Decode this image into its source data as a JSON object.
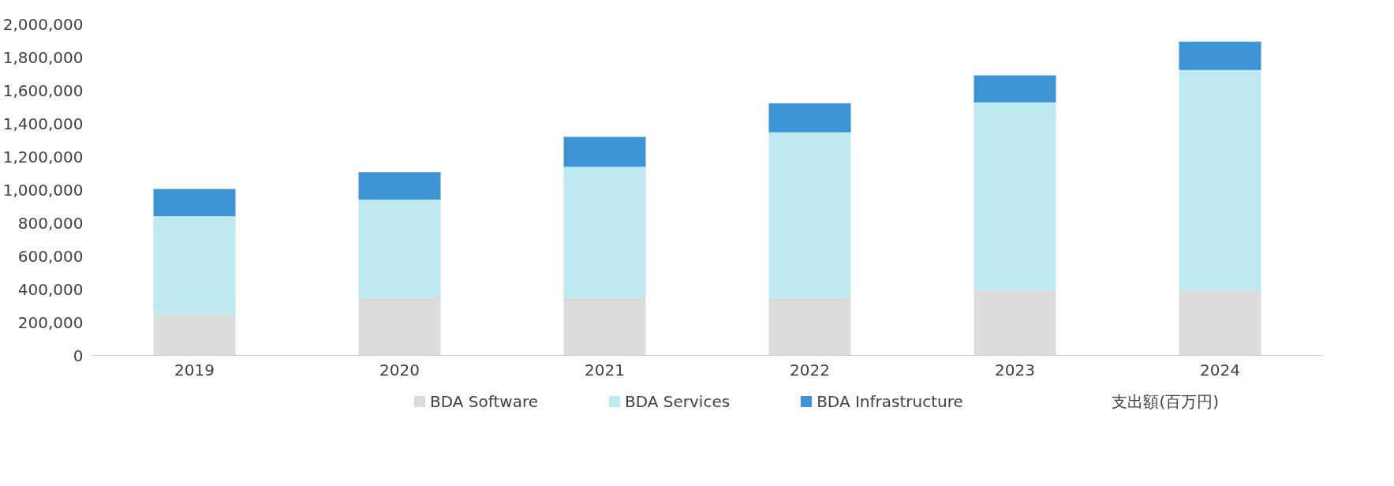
{
  "chart_data": {
    "type": "bar",
    "stacked": true,
    "categories": [
      "2019",
      "2020",
      "2021",
      "2022",
      "2023",
      "2024"
    ],
    "series": [
      {
        "name": "BDA Software",
        "color": "#dcdcdc",
        "values": [
          245000,
          346000,
          346000,
          346000,
          394000,
          394000
        ]
      },
      {
        "name": "BDA Services",
        "color": "#bde9f1",
        "values": [
          595000,
          595000,
          792000,
          1000000,
          1133000,
          1329000
        ]
      },
      {
        "name": "BDA Infrastructure",
        "color": "#3d93d3",
        "values": [
          165000,
          165000,
          181000,
          175000,
          164000,
          171000
        ]
      }
    ],
    "ylim": [
      0,
      2000000
    ],
    "yticks": [
      {
        "value": 0,
        "label": "0"
      },
      {
        "value": 200000,
        "label": "200,000"
      },
      {
        "value": 400000,
        "label": "400,000"
      },
      {
        "value": 600000,
        "label": "600,000"
      },
      {
        "value": 800000,
        "label": "800,000"
      },
      {
        "value": 1000000,
        "label": "1,000,000"
      },
      {
        "value": 1200000,
        "label": "1,200,000"
      },
      {
        "value": 1400000,
        "label": "1,400,000"
      },
      {
        "value": 1600000,
        "label": "1,600,000"
      },
      {
        "value": 1800000,
        "label": "1,800,000"
      },
      {
        "value": 2000000,
        "label": "2,000,000"
      }
    ],
    "annotations": [
      "支出額(百万円)"
    ],
    "legend": "bottom",
    "grid": false
  }
}
